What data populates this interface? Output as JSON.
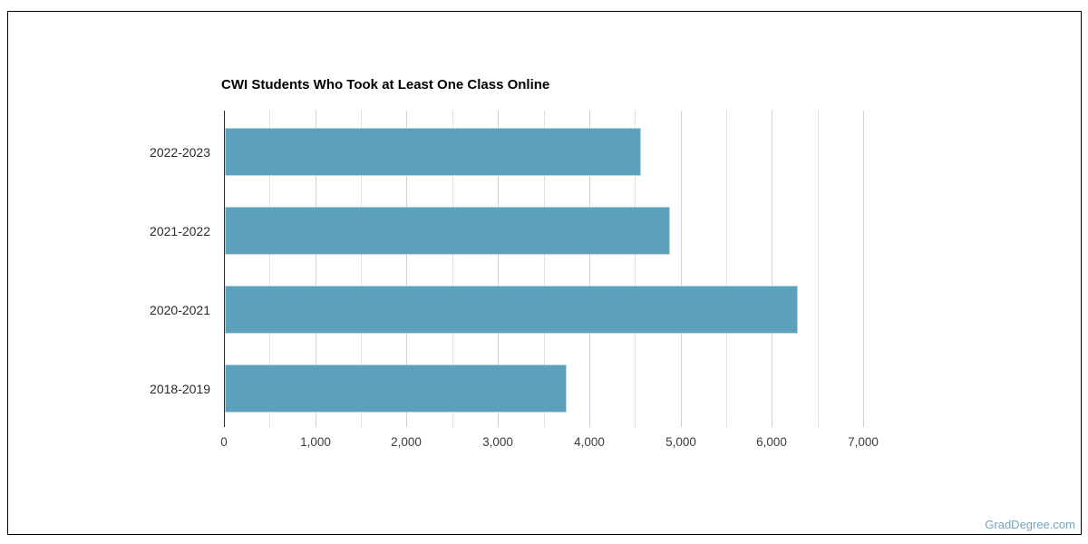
{
  "chart_data": {
    "type": "bar",
    "orientation": "horizontal",
    "title": "CWI Students Who Took at Least One Class Online",
    "categories": [
      "2022-2023",
      "2021-2022",
      "2020-2021",
      "2018-2019"
    ],
    "values": [
      4560,
      4880,
      6280,
      3740
    ],
    "xlabel": "",
    "ylabel": "",
    "xlim": [
      0,
      7000
    ],
    "x_tick_labels": [
      "0",
      "1,000",
      "2,000",
      "3,000",
      "4,000",
      "5,000",
      "6,000",
      "7,000"
    ],
    "x_major_step": 1000,
    "x_minor_step": 500,
    "grid": true,
    "legend": "none",
    "colors": {
      "bar_fill": "#5ba1bc",
      "bar_edge": "#b9d5e0",
      "gridline_minor": "#e2e2e2",
      "gridline_major": "#d2d2d2",
      "axis_line": "#2e2e2e",
      "tick_label": "#3c3c3c",
      "category_label": "#2b2b2b",
      "title": "#000000"
    }
  },
  "watermark": {
    "label": "GradDegree.com",
    "color": "#74a5bf"
  }
}
